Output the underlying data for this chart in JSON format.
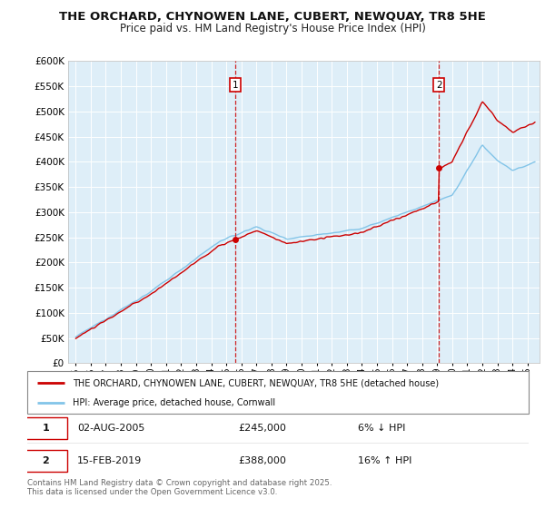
{
  "title": "THE ORCHARD, CHYNOWEN LANE, CUBERT, NEWQUAY, TR8 5HE",
  "subtitle": "Price paid vs. HM Land Registry's House Price Index (HPI)",
  "ylim": [
    0,
    600000
  ],
  "yticks": [
    0,
    50000,
    100000,
    150000,
    200000,
    250000,
    300000,
    350000,
    400000,
    450000,
    500000,
    550000,
    600000
  ],
  "xlim_start": 1994.5,
  "xlim_end": 2025.8,
  "transaction1": {
    "date": 2005.58,
    "price": 245000,
    "label": "1",
    "text": "02-AUG-2005",
    "amount": "£245,000",
    "change": "6% ↓ HPI"
  },
  "transaction2": {
    "date": 2019.12,
    "price": 388000,
    "label": "2",
    "text": "15-FEB-2019",
    "amount": "£388,000",
    "change": "16% ↑ HPI"
  },
  "legend_line1": "THE ORCHARD, CHYNOWEN LANE, CUBERT, NEWQUAY, TR8 5HE (detached house)",
  "legend_line2": "HPI: Average price, detached house, Cornwall",
  "footer": "Contains HM Land Registry data © Crown copyright and database right 2025.\nThis data is licensed under the Open Government Licence v3.0.",
  "hpi_color": "#82c4e8",
  "price_color": "#cc0000",
  "bg_color": "#deeef8",
  "grid_color": "#ffffff"
}
